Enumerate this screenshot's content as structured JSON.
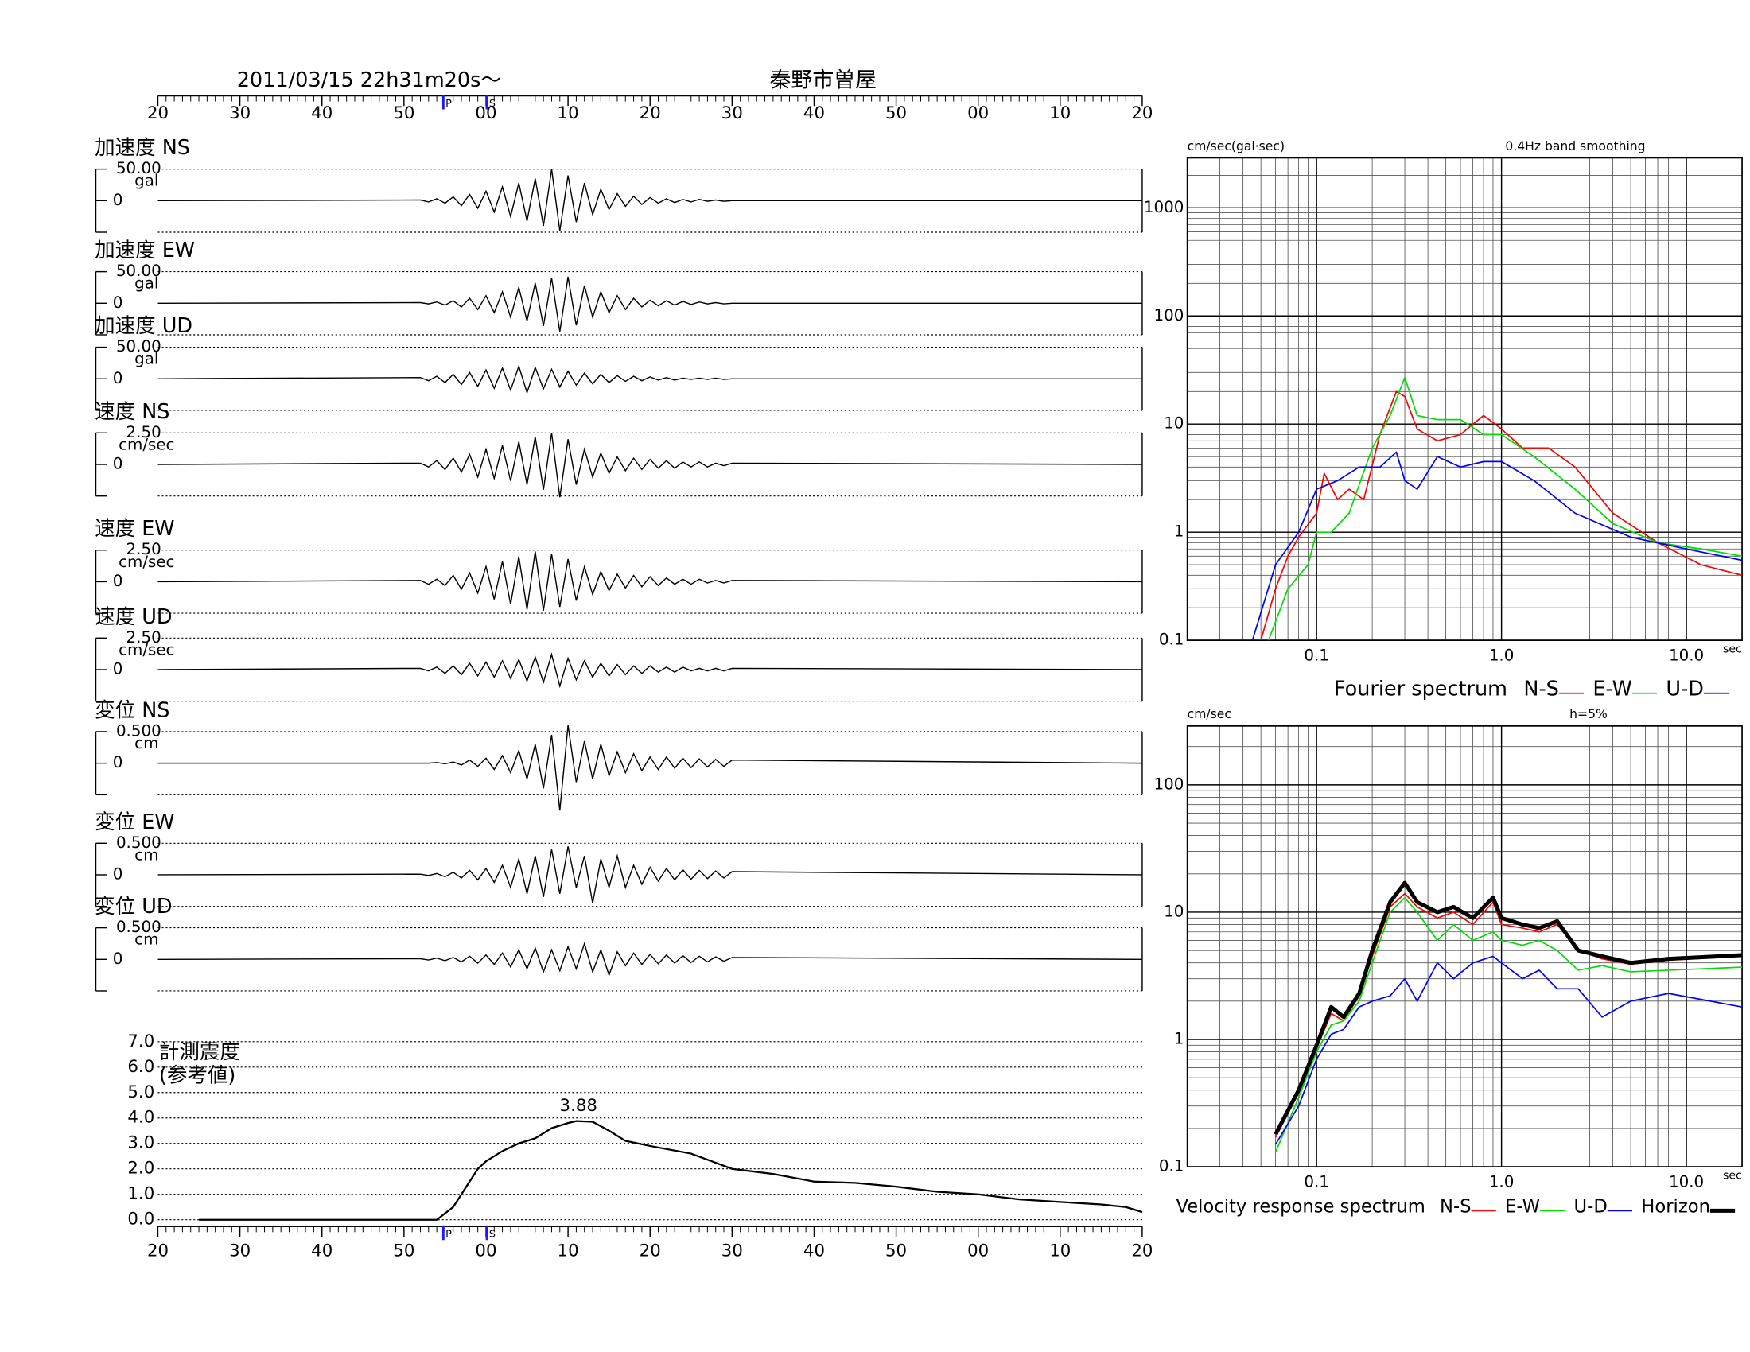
{
  "chart_data": [
    {
      "type": "waveform",
      "title": "2011/03/15  22h31m20s〜",
      "subtitle": "秦野市曽屋",
      "xlim": [
        0,
        120
      ],
      "xticks": [
        {
          "value": 0,
          "label": "20"
        },
        {
          "value": 10,
          "label": "30"
        },
        {
          "value": 20,
          "label": "40"
        },
        {
          "value": 30,
          "label": "50"
        },
        {
          "value": 40,
          "label": "00"
        },
        {
          "value": 50,
          "label": "10"
        },
        {
          "value": 60,
          "label": "20"
        },
        {
          "value": 70,
          "label": "30"
        },
        {
          "value": 80,
          "label": "40"
        },
        {
          "value": 90,
          "label": "50"
        },
        {
          "value": 100,
          "label": "00"
        },
        {
          "value": 110,
          "label": "10"
        },
        {
          "value": 120,
          "label": "20"
        }
      ],
      "markers": [
        {
          "label": "P",
          "value": 34.8
        },
        {
          "label": "S",
          "value": 40.1
        }
      ],
      "x": [
        0,
        32,
        33,
        34,
        35,
        36,
        37,
        38,
        39,
        40,
        41,
        42,
        43,
        44,
        45,
        46,
        47,
        48,
        49,
        50,
        51,
        52,
        53,
        54,
        55,
        56,
        57,
        58,
        59,
        60,
        61,
        62,
        63,
        64,
        65,
        66,
        67,
        68,
        69,
        70,
        120
      ],
      "panels": [
        {
          "label": "加速度 NS",
          "unit": "gal",
          "ylim": [
            -50,
            50
          ],
          "yticks": [
            {
              "value": 50,
              "label": "50.00"
            },
            0
          ],
          "values": [
            0,
            1,
            -2,
            3,
            -4,
            6,
            -8,
            10,
            -12,
            15,
            -18,
            22,
            -25,
            28,
            -32,
            35,
            -40,
            50,
            -48,
            40,
            -34,
            28,
            -22,
            18,
            -14,
            11,
            -9,
            7,
            -6,
            5,
            -4,
            3,
            -3,
            2,
            -2,
            2,
            -1,
            1,
            -1,
            0,
            0
          ]
        },
        {
          "label": "加速度 EW",
          "unit": "gal",
          "ylim": [
            -50,
            50
          ],
          "yticks": [
            {
              "value": 50,
              "label": "50.00"
            },
            0
          ],
          "values": [
            0,
            1,
            -1,
            2,
            -3,
            4,
            -6,
            8,
            -10,
            12,
            -15,
            18,
            -22,
            25,
            -28,
            32,
            -36,
            40,
            -45,
            42,
            -35,
            28,
            -22,
            18,
            -15,
            12,
            -10,
            8,
            -6,
            5,
            -4,
            4,
            -3,
            3,
            -2,
            2,
            -1,
            1,
            -1,
            0,
            0
          ]
        },
        {
          "label": "加速度 UD",
          "unit": "gal",
          "ylim": [
            -50,
            50
          ],
          "yticks": [
            {
              "value": 50,
              "label": "50.00"
            },
            0
          ],
          "values": [
            0,
            2,
            -3,
            4,
            -6,
            7,
            -9,
            10,
            -12,
            14,
            -15,
            17,
            -18,
            20,
            -22,
            18,
            -16,
            15,
            -13,
            12,
            -10,
            9,
            -8,
            7,
            -6,
            5,
            -4,
            4,
            -3,
            3,
            -2,
            2,
            -2,
            1,
            -1,
            1,
            -1,
            1,
            -1,
            0,
            0
          ]
        },
        {
          "label": "速度 NS",
          "unit": "cm/sec",
          "ylim": [
            -2.5,
            2.5
          ],
          "yticks": [
            {
              "value": 2.5,
              "label": "2.50"
            },
            0
          ],
          "values": [
            0,
            0.1,
            -0.2,
            0.3,
            -0.4,
            0.5,
            -0.6,
            0.8,
            -1.0,
            1.2,
            -1.1,
            1.5,
            -1.3,
            1.8,
            -1.6,
            2.2,
            -2.0,
            2.5,
            -2.6,
            2.0,
            -1.6,
            1.2,
            -1.0,
            0.9,
            -0.7,
            0.6,
            -0.5,
            0.5,
            -0.4,
            0.4,
            -0.3,
            0.3,
            -0.3,
            0.2,
            -0.2,
            0.2,
            -0.2,
            0.1,
            -0.1,
            0.1,
            0
          ]
        },
        {
          "label": "速度 EW",
          "unit": "cm/sec",
          "ylim": [
            -2.5,
            2.5
          ],
          "yticks": [
            {
              "value": 2.5,
              "label": "2.50"
            },
            0
          ],
          "values": [
            0,
            0.1,
            -0.2,
            0.2,
            -0.3,
            0.5,
            -0.6,
            0.7,
            -0.9,
            1.2,
            -1.4,
            1.6,
            -1.8,
            2.0,
            -2.2,
            2.4,
            -2.3,
            2.2,
            -2.0,
            1.8,
            -1.5,
            1.2,
            -1.0,
            0.8,
            -0.7,
            0.6,
            -0.5,
            0.5,
            -0.4,
            0.4,
            -0.3,
            0.3,
            -0.2,
            0.2,
            -0.2,
            0.2,
            -0.1,
            0.1,
            -0.1,
            0.1,
            0
          ]
        },
        {
          "label": "速度 UD",
          "unit": "cm/sec",
          "ylim": [
            -2.5,
            2.5
          ],
          "yticks": [
            {
              "value": 2.5,
              "label": "2.50"
            },
            0
          ],
          "values": [
            0,
            0.1,
            -0.1,
            0.2,
            -0.3,
            0.3,
            -0.4,
            0.5,
            -0.5,
            0.6,
            -0.6,
            0.7,
            -0.7,
            0.8,
            -0.9,
            1.0,
            -1.0,
            1.2,
            -1.3,
            0.9,
            -0.8,
            0.7,
            -0.6,
            0.5,
            -0.5,
            0.4,
            -0.4,
            0.3,
            -0.3,
            0.3,
            -0.2,
            0.2,
            -0.2,
            0.2,
            -0.1,
            0.1,
            -0.1,
            0.1,
            -0.1,
            0.1,
            0
          ]
        },
        {
          "label": "変位 NS",
          "unit": "cm",
          "ylim": [
            -0.5,
            0.5
          ],
          "yticks": [
            {
              "value": 0.5,
              "label": "0.500"
            },
            0
          ],
          "values": [
            0,
            0,
            0,
            0.01,
            -0.01,
            0.02,
            -0.03,
            0.05,
            -0.05,
            0.08,
            -0.1,
            0.12,
            -0.15,
            0.2,
            -0.25,
            0.3,
            -0.4,
            0.45,
            -0.75,
            0.6,
            -0.3,
            0.35,
            -0.25,
            0.3,
            -0.2,
            0.18,
            -0.15,
            0.15,
            -0.12,
            0.1,
            -0.1,
            0.1,
            -0.08,
            0.08,
            -0.07,
            0.07,
            -0.06,
            0.06,
            -0.05,
            0.05,
            0
          ]
        },
        {
          "label": "変位 EW",
          "unit": "cm",
          "ylim": [
            -0.5,
            0.5
          ],
          "yticks": [
            {
              "value": 0.5,
              "label": "0.500"
            },
            0
          ],
          "values": [
            0,
            0.01,
            -0.01,
            0.02,
            -0.03,
            0.04,
            -0.05,
            0.07,
            -0.08,
            0.1,
            -0.12,
            0.15,
            -0.2,
            0.25,
            -0.3,
            0.3,
            -0.35,
            0.4,
            -0.3,
            0.45,
            -0.2,
            0.3,
            -0.45,
            0.25,
            -0.2,
            0.3,
            -0.2,
            0.15,
            -0.15,
            0.12,
            -0.1,
            0.1,
            -0.08,
            0.08,
            -0.07,
            0.07,
            -0.06,
            0.06,
            -0.05,
            0.05,
            0
          ]
        },
        {
          "label": "変位 UD",
          "unit": "cm",
          "ylim": [
            -0.5,
            0.5
          ],
          "yticks": [
            {
              "value": 0.5,
              "label": "0.500"
            },
            0
          ],
          "values": [
            0,
            0.01,
            -0.01,
            0.02,
            -0.02,
            0.03,
            -0.04,
            0.05,
            -0.06,
            0.07,
            -0.08,
            0.1,
            -0.12,
            0.15,
            -0.15,
            0.18,
            -0.2,
            0.15,
            -0.18,
            0.2,
            -0.15,
            0.25,
            -0.2,
            0.15,
            -0.25,
            0.12,
            -0.1,
            0.1,
            -0.08,
            0.08,
            -0.07,
            0.07,
            -0.06,
            0.06,
            -0.05,
            0.05,
            -0.04,
            0.04,
            -0.03,
            0.03,
            0
          ]
        }
      ]
    },
    {
      "type": "line",
      "title": "計測震度",
      "subtitle": "(参考値)",
      "color": "#000000",
      "ylim": [
        0,
        7
      ],
      "yticks": [
        {
          "value": 0,
          "label": "0.0"
        },
        {
          "value": 1,
          "label": "1.0"
        },
        {
          "value": 2,
          "label": "2.0"
        },
        {
          "value": 3,
          "label": "3.0"
        },
        {
          "value": 4,
          "label": "4.0"
        },
        {
          "value": 5,
          "label": "5.0"
        },
        {
          "value": 6,
          "label": "6.0"
        },
        {
          "value": 7,
          "label": "7.0"
        }
      ],
      "x": [
        5,
        34,
        36,
        37,
        38,
        39,
        40,
        42,
        44,
        46,
        48,
        50,
        51,
        53,
        55,
        57,
        60,
        65,
        70,
        75,
        80,
        85,
        90,
        95,
        100,
        105,
        110,
        115,
        118,
        120
      ],
      "values": [
        0,
        0,
        0.5,
        1.0,
        1.5,
        2.0,
        2.3,
        2.7,
        3.0,
        3.2,
        3.6,
        3.8,
        3.88,
        3.85,
        3.5,
        3.1,
        2.9,
        2.6,
        2.0,
        1.8,
        1.5,
        1.45,
        1.3,
        1.1,
        1.0,
        0.8,
        0.7,
        0.6,
        0.5,
        0.3
      ]
    },
    {
      "type": "logline",
      "title": "Fourier spectrum",
      "ylabel": "cm/sec(gal·sec)",
      "annotation": "0.4Hz band smoothing",
      "xlabel": "sec",
      "xlog": true,
      "ylog": true,
      "grid": true,
      "xlim": [
        0.02,
        20
      ],
      "ylim": [
        0.1,
        2900
      ],
      "xticks": [
        0.1,
        {
          "value": 1,
          "label": "1.0"
        },
        {
          "value": 10,
          "label": "10.0"
        }
      ],
      "yticks": [
        0.1,
        1,
        10,
        100,
        1000
      ],
      "series": [
        {
          "name": "N-S",
          "color": "#ff0000",
          "line_width": 1.2,
          "x": [
            0.05,
            0.06,
            0.07,
            0.08,
            0.1,
            0.11,
            0.13,
            0.15,
            0.18,
            0.22,
            0.27,
            0.3,
            0.35,
            0.45,
            0.6,
            0.8,
            1.0,
            1.3,
            1.8,
            2.5,
            4,
            7,
            12,
            20
          ],
          "values": [
            0.1,
            0.3,
            0.6,
            0.9,
            1.5,
            3.5,
            2,
            2.5,
            2,
            8,
            20,
            18,
            9,
            7,
            8,
            12,
            9,
            6,
            6,
            4,
            1.5,
            0.8,
            0.5,
            0.4
          ]
        },
        {
          "name": "E-W",
          "color": "#00dd00",
          "line_width": 1.2,
          "x": [
            0.055,
            0.07,
            0.09,
            0.1,
            0.12,
            0.15,
            0.2,
            0.25,
            0.3,
            0.35,
            0.45,
            0.6,
            0.8,
            1.0,
            1.5,
            2.5,
            4,
            7,
            12,
            20
          ],
          "values": [
            0.1,
            0.3,
            0.5,
            1,
            1,
            1.5,
            6,
            12,
            27,
            12,
            11,
            11,
            8,
            8,
            5,
            2.5,
            1.2,
            0.8,
            0.7,
            0.6
          ]
        },
        {
          "name": "U-D",
          "color": "#0000ff",
          "line_width": 1.2,
          "x": [
            0.045,
            0.06,
            0.08,
            0.1,
            0.13,
            0.17,
            0.22,
            0.27,
            0.3,
            0.35,
            0.45,
            0.6,
            0.8,
            1.0,
            1.5,
            2.5,
            5,
            10,
            20
          ],
          "values": [
            0.1,
            0.5,
            1,
            2.5,
            3,
            4,
            4,
            5.5,
            3,
            2.5,
            5,
            4,
            4.5,
            4.5,
            3,
            1.5,
            0.9,
            0.7,
            0.55
          ]
        }
      ]
    },
    {
      "type": "logline",
      "title": "Velocity response spectrum",
      "ylabel": "cm/sec",
      "annotation": "h=5%",
      "xlabel": "sec",
      "xlog": true,
      "ylog": true,
      "grid": true,
      "xlim": [
        0.02,
        20
      ],
      "ylim": [
        0.1,
        290
      ],
      "xticks": [
        0.1,
        {
          "value": 1,
          "label": "1.0"
        },
        {
          "value": 10,
          "label": "10.0"
        }
      ],
      "yticks": [
        0.1,
        1,
        10,
        100
      ],
      "series": [
        {
          "name": "N-S",
          "color": "#ff0000",
          "line_width": 1.2,
          "x": [
            0.06,
            0.08,
            0.1,
            0.12,
            0.14,
            0.17,
            0.2,
            0.25,
            0.3,
            0.35,
            0.45,
            0.55,
            0.7,
            0.9,
            1.0,
            1.3,
            1.6,
            2.0,
            2.6,
            3.5,
            5,
            8,
            20
          ],
          "values": [
            0.17,
            0.38,
            0.85,
            1.6,
            1.4,
            2.2,
            4.5,
            11,
            14,
            11,
            9,
            10,
            8,
            12,
            8,
            7.5,
            7,
            8,
            5,
            4.3,
            3.9,
            4.2,
            4.5
          ]
        },
        {
          "name": "E-W",
          "color": "#00dd00",
          "line_width": 1.2,
          "x": [
            0.06,
            0.08,
            0.1,
            0.12,
            0.14,
            0.17,
            0.2,
            0.25,
            0.3,
            0.35,
            0.45,
            0.55,
            0.7,
            0.9,
            1.0,
            1.3,
            1.6,
            2.0,
            2.6,
            3.5,
            5,
            8,
            20
          ],
          "values": [
            0.13,
            0.35,
            0.8,
            1.3,
            1.4,
            2,
            4,
            10,
            13,
            10,
            6,
            8,
            6,
            7,
            6,
            5.5,
            6,
            5,
            3.5,
            3.8,
            3.4,
            3.5,
            3.7
          ]
        },
        {
          "name": "U-D",
          "color": "#0000ff",
          "line_width": 1.2,
          "x": [
            0.06,
            0.08,
            0.1,
            0.12,
            0.14,
            0.17,
            0.2,
            0.25,
            0.3,
            0.35,
            0.45,
            0.55,
            0.7,
            0.9,
            1.0,
            1.3,
            1.6,
            2.0,
            2.6,
            3.5,
            5,
            8,
            20
          ],
          "values": [
            0.15,
            0.3,
            0.7,
            1.1,
            1.2,
            1.8,
            2,
            2.2,
            3,
            2,
            4,
            3,
            4,
            4.5,
            4,
            3,
            3.5,
            2.5,
            2.5,
            1.5,
            2,
            2.3,
            1.8
          ]
        },
        {
          "name": "Horizon",
          "color": "#000000",
          "line_width": 3.5,
          "x": [
            0.06,
            0.08,
            0.1,
            0.12,
            0.14,
            0.17,
            0.2,
            0.25,
            0.3,
            0.35,
            0.45,
            0.55,
            0.7,
            0.9,
            1.0,
            1.3,
            1.6,
            2.0,
            2.6,
            3.5,
            5,
            8,
            20
          ],
          "values": [
            0.18,
            0.4,
            0.9,
            1.8,
            1.5,
            2.3,
            5,
            12,
            17,
            12,
            10,
            11,
            9,
            13,
            9,
            8,
            7.5,
            8.5,
            5,
            4.5,
            4,
            4.3,
            4.6
          ]
        }
      ]
    }
  ]
}
